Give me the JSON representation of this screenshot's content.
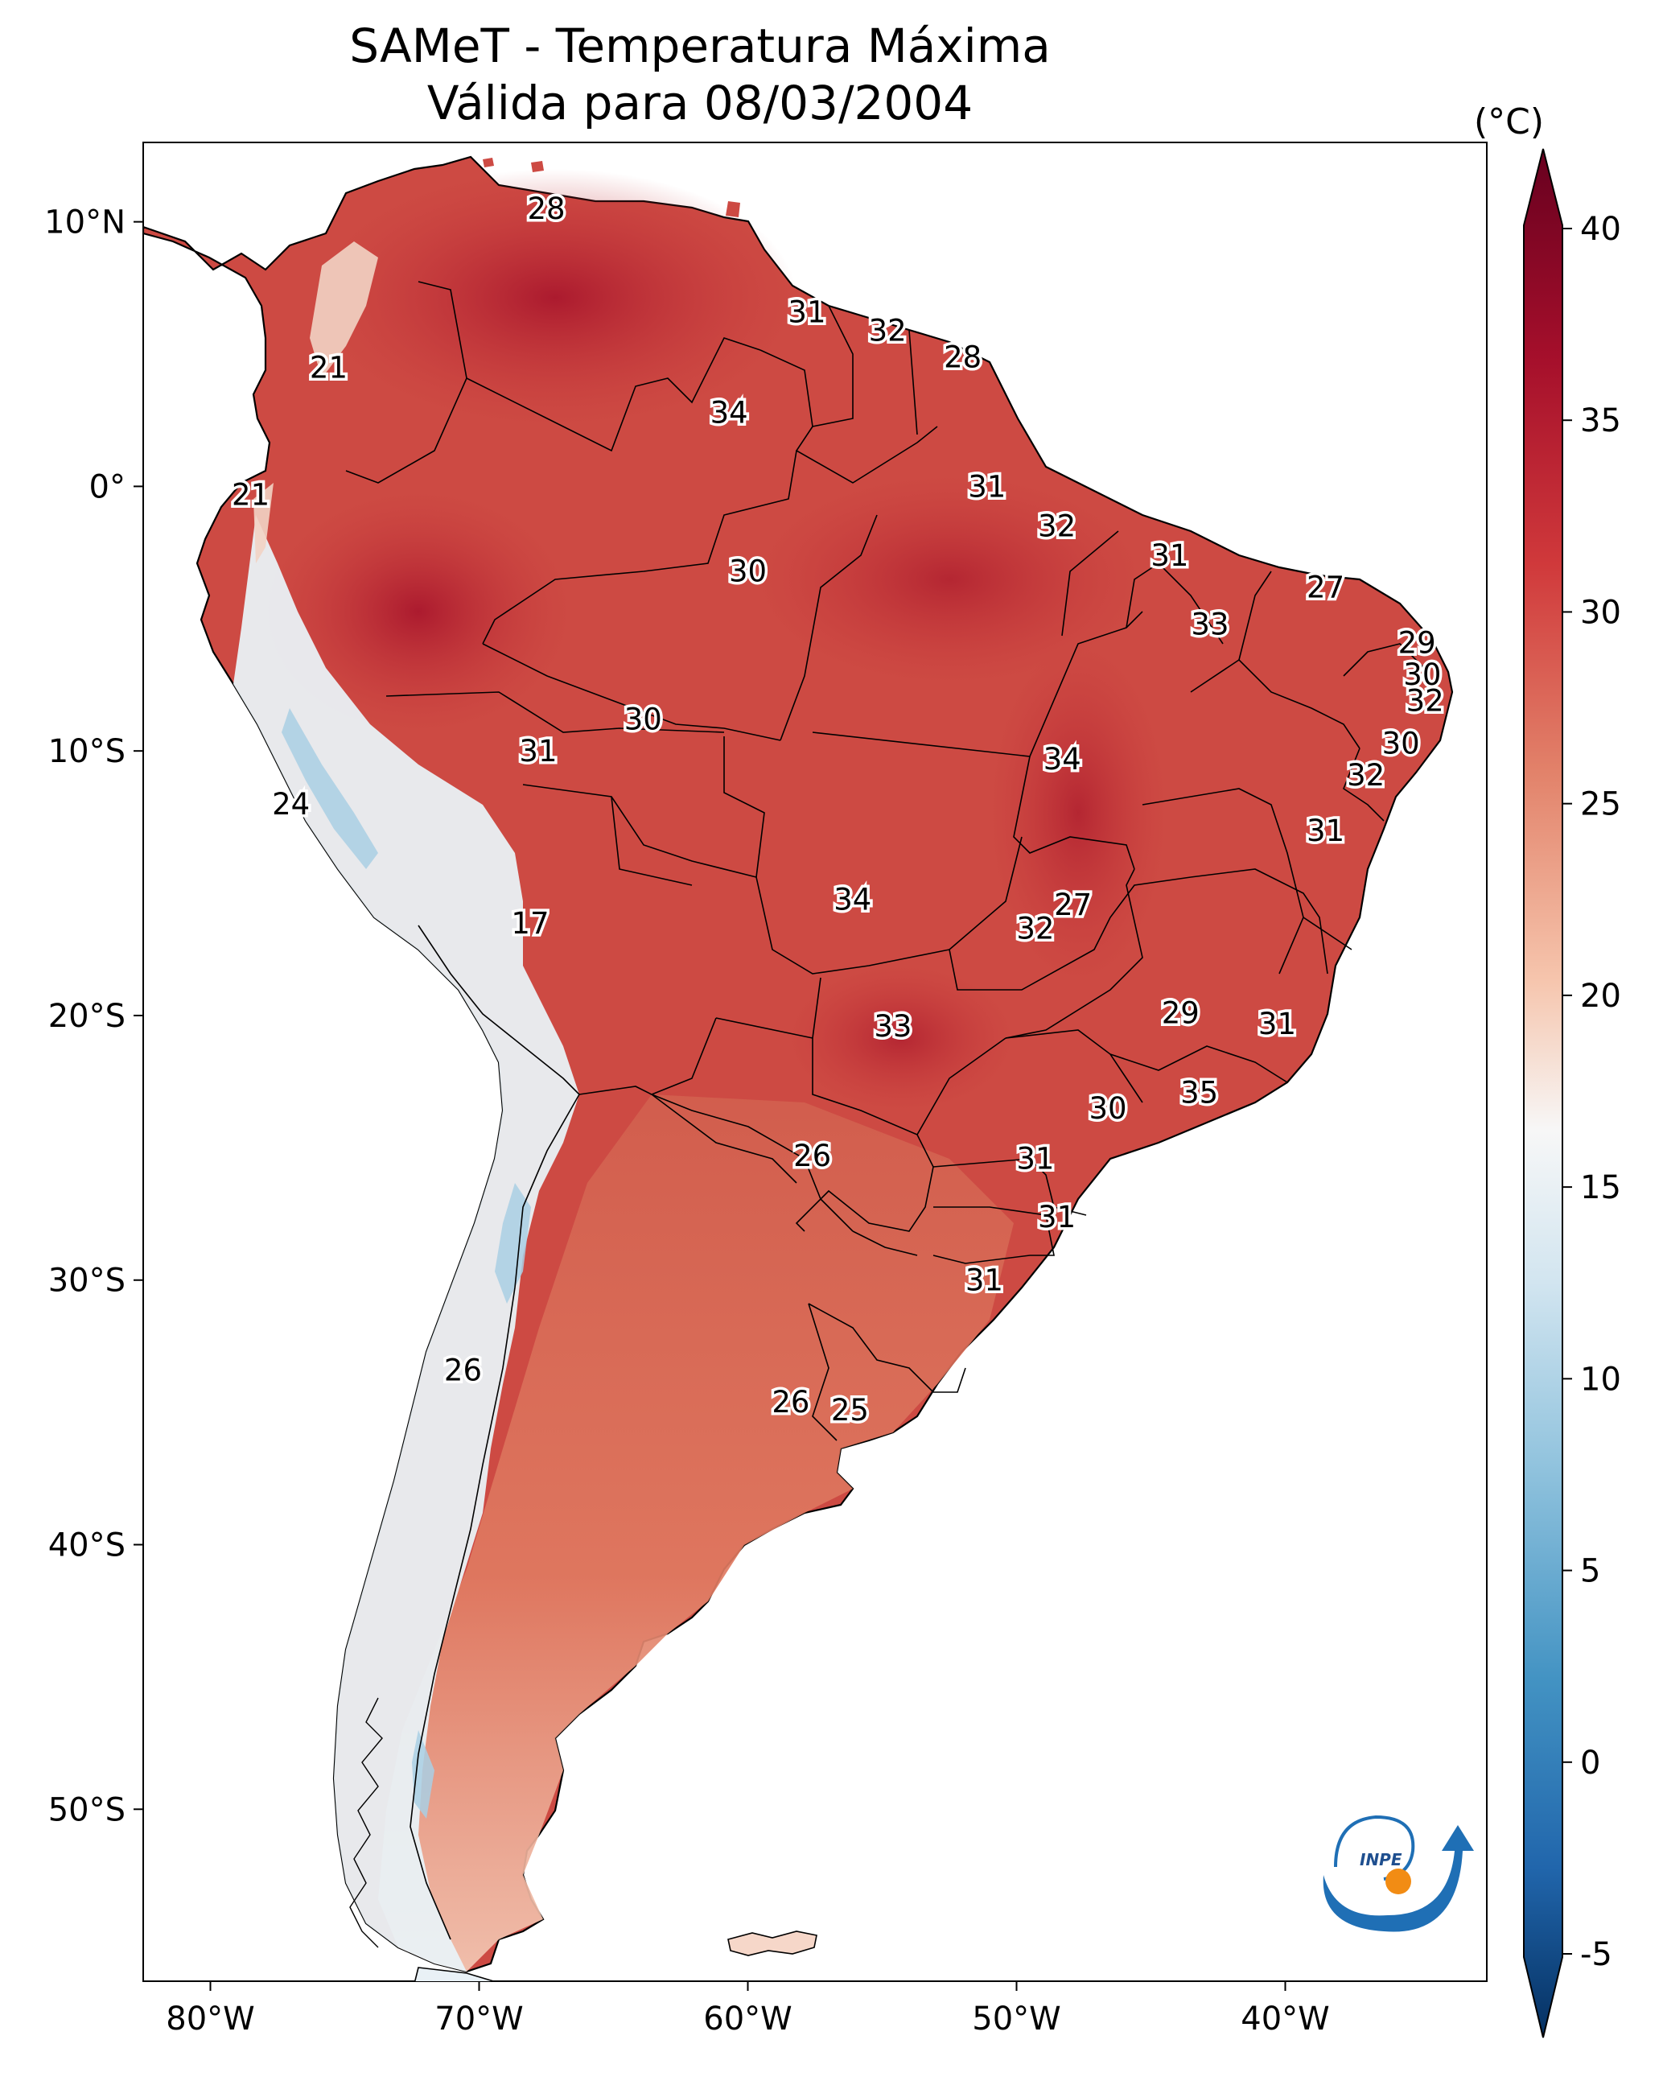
{
  "title": {
    "line1": "SAMeT - Temperatura Máxima",
    "line2": "Válida para 08/03/2004"
  },
  "colorbar": {
    "unit": "(°C)",
    "ticks": [
      {
        "value": 40,
        "label": "40"
      },
      {
        "value": 35,
        "label": "35"
      },
      {
        "value": 30,
        "label": "30"
      },
      {
        "value": 25,
        "label": "25"
      },
      {
        "value": 20,
        "label": "20"
      },
      {
        "value": 15,
        "label": "15"
      },
      {
        "value": 10,
        "label": "10"
      },
      {
        "value": 5,
        "label": "5"
      },
      {
        "value": 0,
        "label": "0"
      },
      {
        "value": -5,
        "label": "-5"
      }
    ],
    "colors": [
      "#0b3f7a",
      "#2f6fb2",
      "#78b1d6",
      "#d4e6f1",
      "#f7f7f7",
      "#f6c9b1",
      "#e0826a",
      "#c6373a",
      "#8c0f24",
      "#5f0d1b"
    ]
  },
  "axes": {
    "lat_ticks": [
      {
        "value": 10,
        "label": "10°N"
      },
      {
        "value": 0,
        "label": "0°"
      },
      {
        "value": -10,
        "label": "10°S"
      },
      {
        "value": -20,
        "label": "20°S"
      },
      {
        "value": -30,
        "label": "30°S"
      },
      {
        "value": -40,
        "label": "40°S"
      },
      {
        "value": -50,
        "label": "50°S"
      }
    ],
    "lon_ticks": [
      {
        "value": -80,
        "label": "80°W"
      },
      {
        "value": -70,
        "label": "70°W"
      },
      {
        "value": -60,
        "label": "60°W"
      },
      {
        "value": -50,
        "label": "50°W"
      },
      {
        "value": -40,
        "label": "40°W"
      }
    ],
    "lon_range": [
      -82.5,
      -32.5
    ],
    "lat_range": [
      -56.5,
      13
    ]
  },
  "city_values": [
    {
      "lon": -67.5,
      "lat": 10.5,
      "value": "28"
    },
    {
      "lon": -57.8,
      "lat": 6.6,
      "value": "31"
    },
    {
      "lon": -54.8,
      "lat": 5.9,
      "value": "32"
    },
    {
      "lon": -52.0,
      "lat": 4.9,
      "value": "28"
    },
    {
      "lon": -75.6,
      "lat": 4.5,
      "value": "21"
    },
    {
      "lon": -60.7,
      "lat": 2.8,
      "value": "34"
    },
    {
      "lon": -51.1,
      "lat": 0.0,
      "value": "31"
    },
    {
      "lon": -78.5,
      "lat": -0.3,
      "value": "21"
    },
    {
      "lon": -48.5,
      "lat": -1.5,
      "value": "32"
    },
    {
      "lon": -44.3,
      "lat": -2.6,
      "value": "31"
    },
    {
      "lon": -60.0,
      "lat": -3.2,
      "value": "30"
    },
    {
      "lon": -38.5,
      "lat": -3.8,
      "value": "27"
    },
    {
      "lon": -42.8,
      "lat": -5.2,
      "value": "33"
    },
    {
      "lon": -35.1,
      "lat": -5.9,
      "value": "29"
    },
    {
      "lon": -34.9,
      "lat": -7.1,
      "value": "30"
    },
    {
      "lon": -34.8,
      "lat": -8.1,
      "value": "32"
    },
    {
      "lon": -63.9,
      "lat": -8.8,
      "value": "30"
    },
    {
      "lon": -35.7,
      "lat": -9.7,
      "value": "30"
    },
    {
      "lon": -67.8,
      "lat": -10.0,
      "value": "31"
    },
    {
      "lon": -48.3,
      "lat": -10.3,
      "value": "34"
    },
    {
      "lon": -37.0,
      "lat": -10.9,
      "value": "32"
    },
    {
      "lon": -77.0,
      "lat": -12.0,
      "value": "24"
    },
    {
      "lon": -38.5,
      "lat": -13.0,
      "value": "31"
    },
    {
      "lon": -56.1,
      "lat": -15.6,
      "value": "34"
    },
    {
      "lon": -47.9,
      "lat": -15.8,
      "value": "27"
    },
    {
      "lon": -49.3,
      "lat": -16.7,
      "value": "32"
    },
    {
      "lon": -68.1,
      "lat": -16.5,
      "value": "17"
    },
    {
      "lon": -43.9,
      "lat": -19.9,
      "value": "29"
    },
    {
      "lon": -40.3,
      "lat": -20.3,
      "value": "31"
    },
    {
      "lon": -54.6,
      "lat": -20.4,
      "value": "33"
    },
    {
      "lon": -43.2,
      "lat": -22.9,
      "value": "35"
    },
    {
      "lon": -46.6,
      "lat": -23.5,
      "value": "30"
    },
    {
      "lon": -57.6,
      "lat": -25.3,
      "value": "26"
    },
    {
      "lon": -49.3,
      "lat": -25.4,
      "value": "31"
    },
    {
      "lon": -48.5,
      "lat": -27.6,
      "value": "31"
    },
    {
      "lon": -51.2,
      "lat": -30.0,
      "value": "31"
    },
    {
      "lon": -70.6,
      "lat": -33.4,
      "value": "26"
    },
    {
      "lon": -58.4,
      "lat": -34.6,
      "value": "26"
    },
    {
      "lon": -56.2,
      "lat": -34.9,
      "value": "25"
    }
  ],
  "logo": {
    "text": "INPE"
  }
}
